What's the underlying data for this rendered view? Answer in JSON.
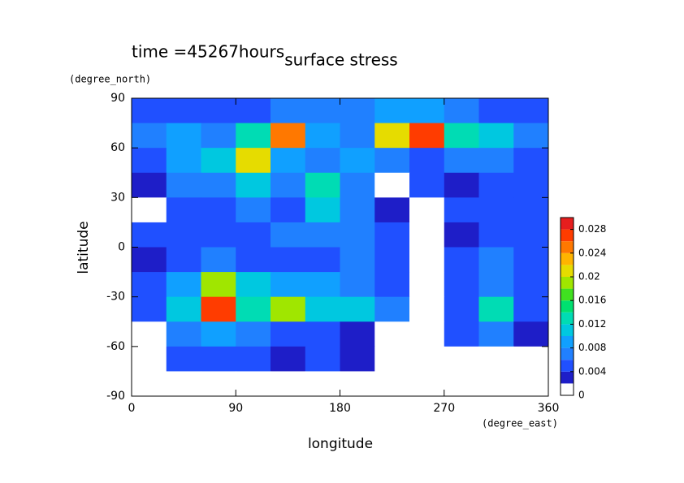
{
  "chart_data": {
    "type": "contour",
    "title": "surface stress",
    "annotation": "time =45267hours",
    "xlabel": "longitude",
    "ylabel": "latitude",
    "x_units": "(degree_east)",
    "y_units": "(degree_north)",
    "xlim": [
      0,
      360
    ],
    "ylim": [
      -90,
      90
    ],
    "xticks": [
      0,
      90,
      180,
      270,
      360
    ],
    "yticks": [
      -90,
      -60,
      -30,
      0,
      30,
      60,
      90
    ],
    "x": [
      15,
      45,
      75,
      105,
      135,
      165,
      195,
      225,
      255,
      285,
      315,
      345
    ],
    "y": [
      82.5,
      67.5,
      52.5,
      37.5,
      22.5,
      7.5,
      -7.5,
      -22.5,
      -37.5,
      -52.5,
      -67.5,
      -82.5
    ],
    "z": [
      [
        0.004,
        0.004,
        0.004,
        0.004,
        0.006,
        0.006,
        0.006,
        0.008,
        0.008,
        0.006,
        0.004,
        0.004
      ],
      [
        0.006,
        0.008,
        0.006,
        0.012,
        0.024,
        0.008,
        0.006,
        0.02,
        0.026,
        0.012,
        0.01,
        0.006
      ],
      [
        0.004,
        0.008,
        0.01,
        0.02,
        0.008,
        0.006,
        0.008,
        0.006,
        0.004,
        0.006,
        0.006,
        0.004
      ],
      [
        0.002,
        0.006,
        0.006,
        0.01,
        0.006,
        0.012,
        0.006,
        0.001,
        0.004,
        0.002,
        0.004,
        0.004
      ],
      [
        0.001,
        0.004,
        0.004,
        0.006,
        0.004,
        0.01,
        0.006,
        0.002,
        0.001,
        0.004,
        0.004,
        0.004
      ],
      [
        0.004,
        0.004,
        0.004,
        0.004,
        0.006,
        0.006,
        0.006,
        0.004,
        0.001,
        0.002,
        0.004,
        0.004
      ],
      [
        0.002,
        0.004,
        0.006,
        0.004,
        0.004,
        0.004,
        0.006,
        0.004,
        0.001,
        0.004,
        0.006,
        0.004
      ],
      [
        0.004,
        0.008,
        0.018,
        0.01,
        0.008,
        0.008,
        0.006,
        0.004,
        0.001,
        0.004,
        0.006,
        0.004
      ],
      [
        0.004,
        0.01,
        0.026,
        0.012,
        0.018,
        0.01,
        0.01,
        0.006,
        0.001,
        0.004,
        0.012,
        0.004
      ],
      [
        0.001,
        0.006,
        0.008,
        0.006,
        0.004,
        0.004,
        0.002,
        0.001,
        0.001,
        0.004,
        0.006,
        0.002
      ],
      [
        0.001,
        0.004,
        0.004,
        0.004,
        0.002,
        0.004,
        0.002,
        0.001,
        0.001,
        0.001,
        0.001,
        0.001
      ],
      [
        0,
        0,
        0,
        0,
        0,
        0,
        0,
        0,
        0,
        0,
        0,
        0
      ]
    ],
    "levels": [
      0,
      0.002,
      0.004,
      0.006,
      0.008,
      0.01,
      0.012,
      0.014,
      0.016,
      0.018,
      0.02,
      0.022,
      0.024,
      0.026,
      0.028,
      0.03
    ],
    "colors": [
      "#ffffff",
      "#1e1ec8",
      "#2050ff",
      "#2080ff",
      "#10a0ff",
      "#00c8e0",
      "#00dcb4",
      "#00e070",
      "#40e020",
      "#a0e600",
      "#e6dc00",
      "#ffb400",
      "#ff7800",
      "#ff3c00",
      "#e61e1e"
    ],
    "colorbar_ticks": [
      0,
      0.004,
      0.008,
      0.012,
      0.016,
      0.02,
      0.024,
      0.028
    ]
  }
}
